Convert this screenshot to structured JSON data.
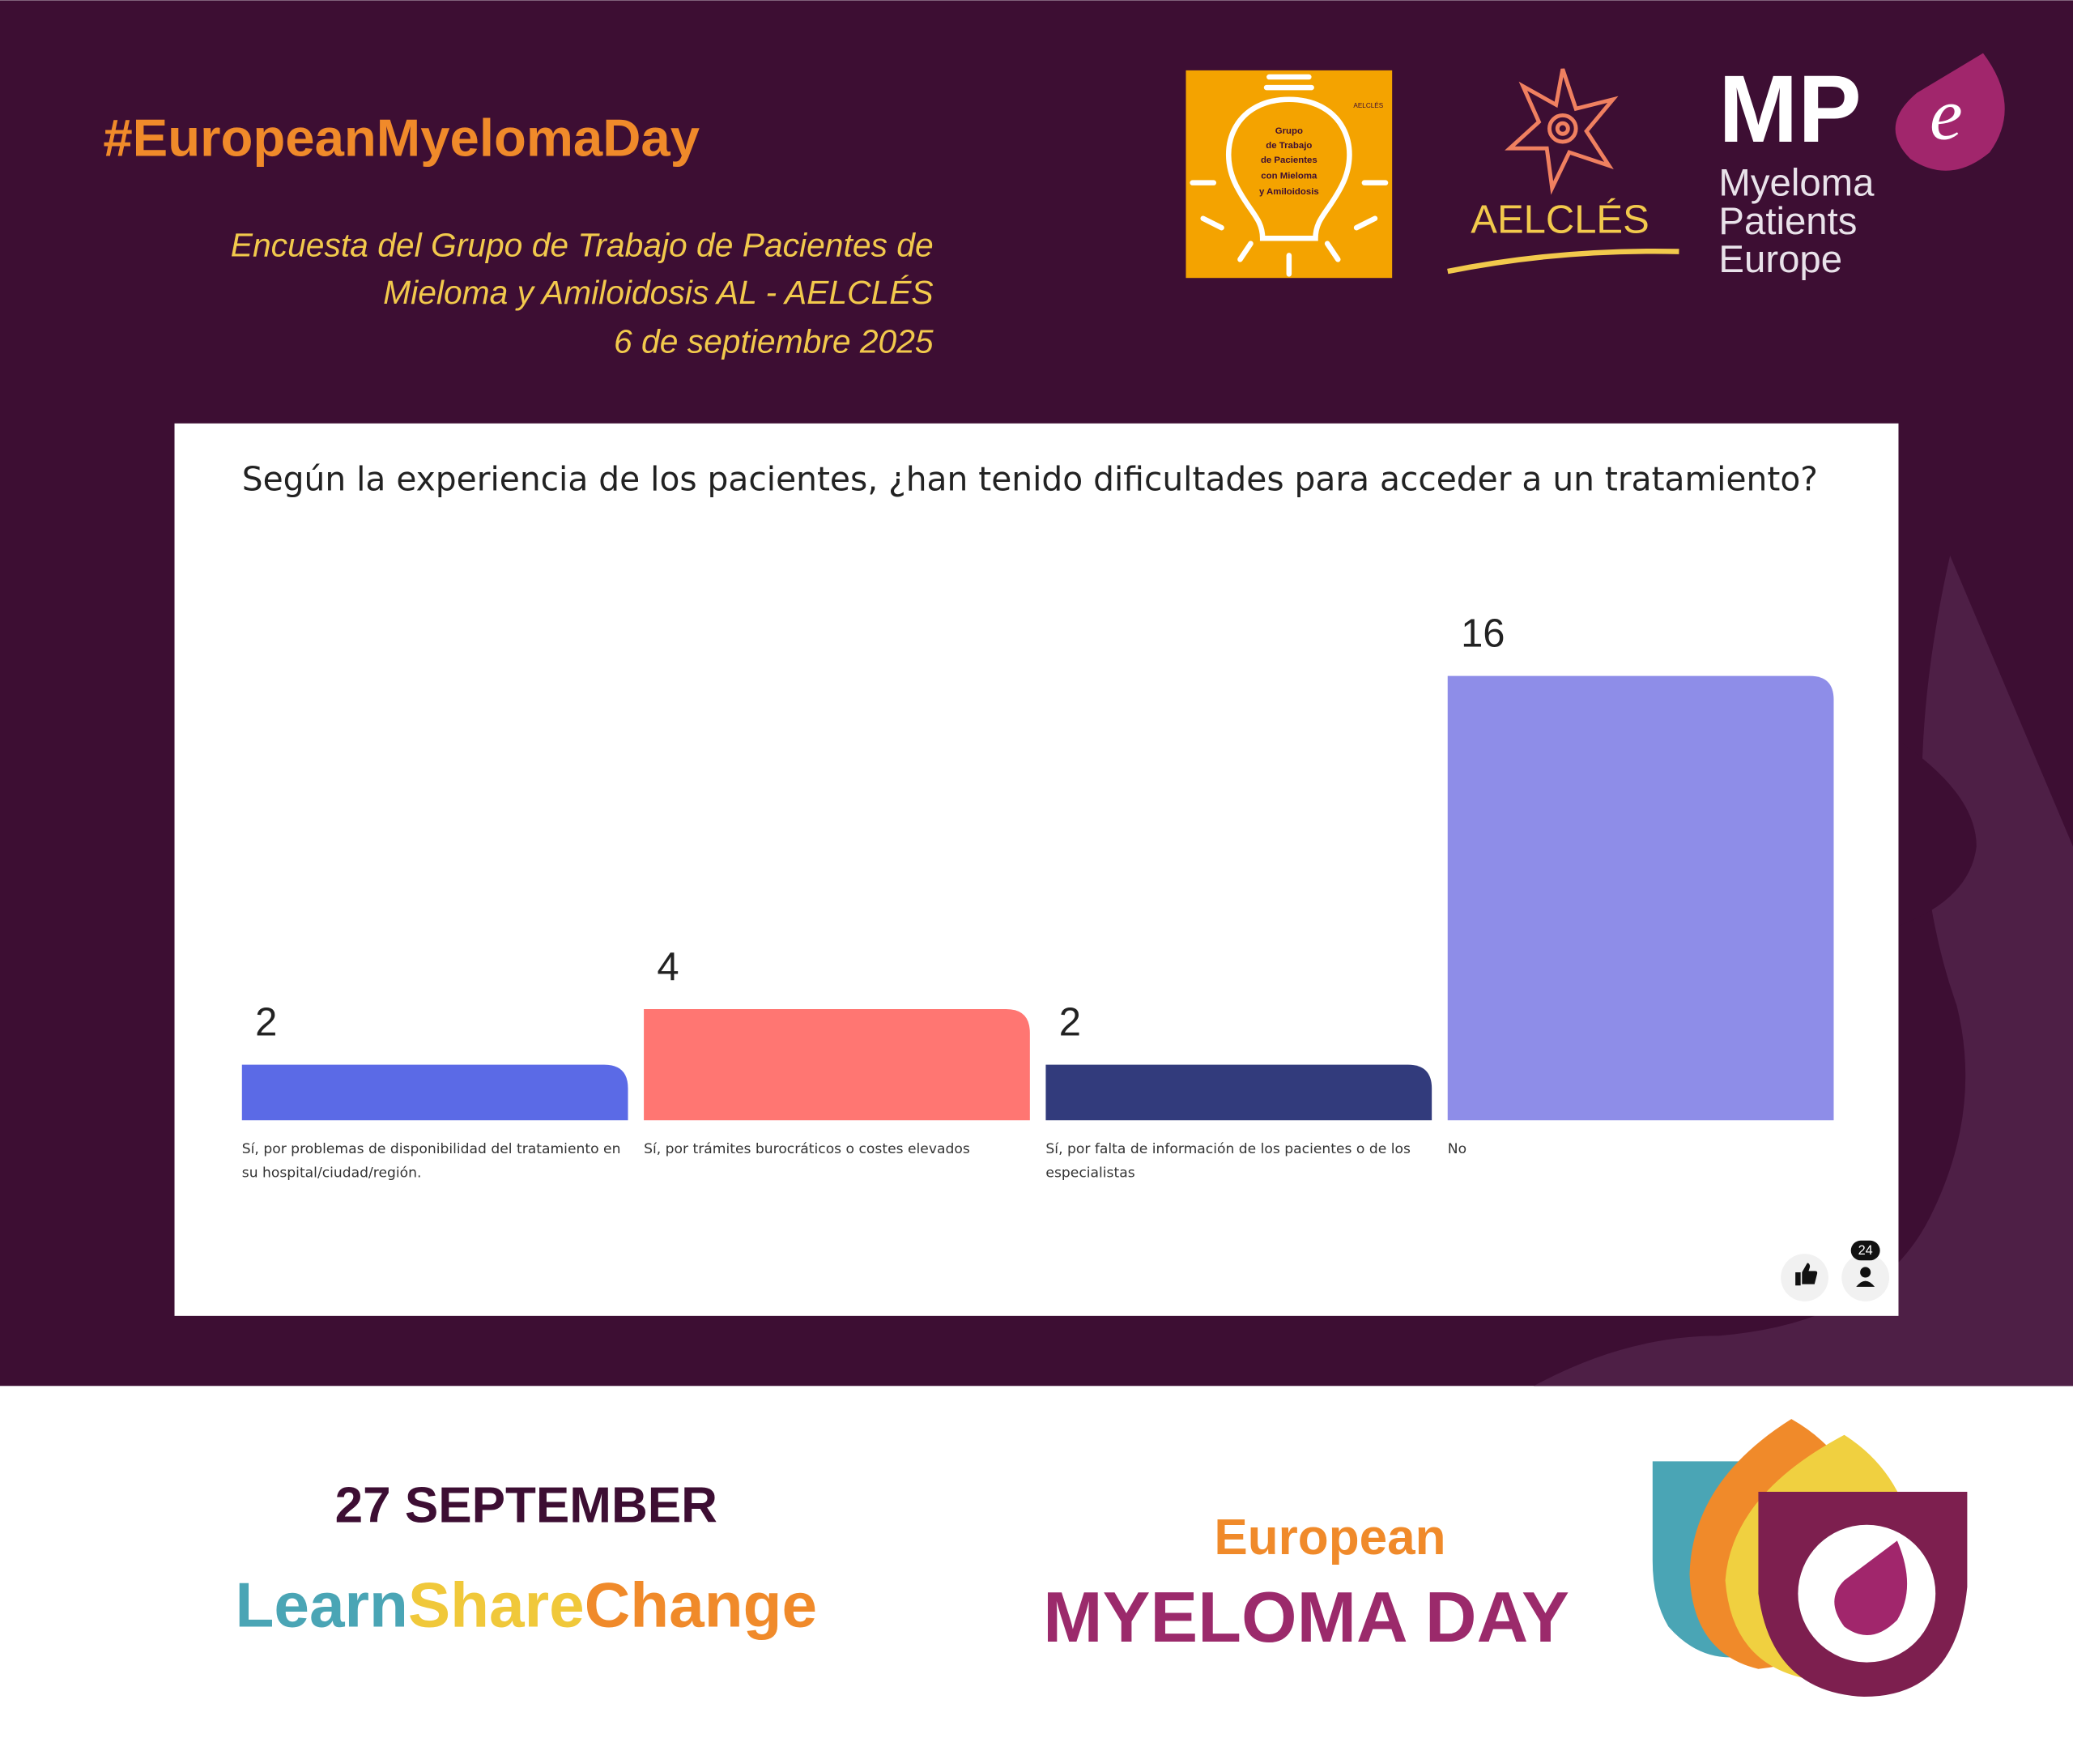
{
  "header": {
    "hashtag": "#EuropeanMyelomaDay",
    "subtitle_lines": [
      "Encuesta del Grupo de Trabajo de Pacientes de",
      "Mieloma y Amiloidosis AL - AELCLÉS",
      "6 de septiembre 2025"
    ]
  },
  "logos": {
    "group_badge": "AELCLÉS",
    "group_lines": [
      "Grupo",
      "de Trabajo",
      "de Pacientes",
      "con Mieloma",
      "y Amiloidosis"
    ],
    "aelcles": "AELCLÉS",
    "mpe_mark": "MP",
    "mpe_e": "e",
    "mpe_lines": [
      "Myeloma",
      "Patients",
      "Europe"
    ]
  },
  "chart_data": {
    "type": "bar",
    "title": "Según la experiencia de los pacientes, ¿han tenido dificultades para acceder a un tratamiento?",
    "categories": [
      "Sí, por problemas de disponibilidad del tratamiento en su hospital/ciudad/región.",
      "Sí, por trámites burocráticos o costes elevados",
      "Sí, por falta de información de los pacientes o de los especialistas",
      "No"
    ],
    "values": [
      2,
      4,
      2,
      16
    ],
    "colors": [
      "#5b6ae6",
      "#ff7672",
      "#323b7c",
      "#8e8de8"
    ],
    "participants": 24
  },
  "footer": {
    "date": "27 SEPTEMBER",
    "learn": "Learn",
    "share": "Share",
    "change": "Change",
    "european": "European",
    "myeloma_day": "MYELOMA DAY"
  }
}
